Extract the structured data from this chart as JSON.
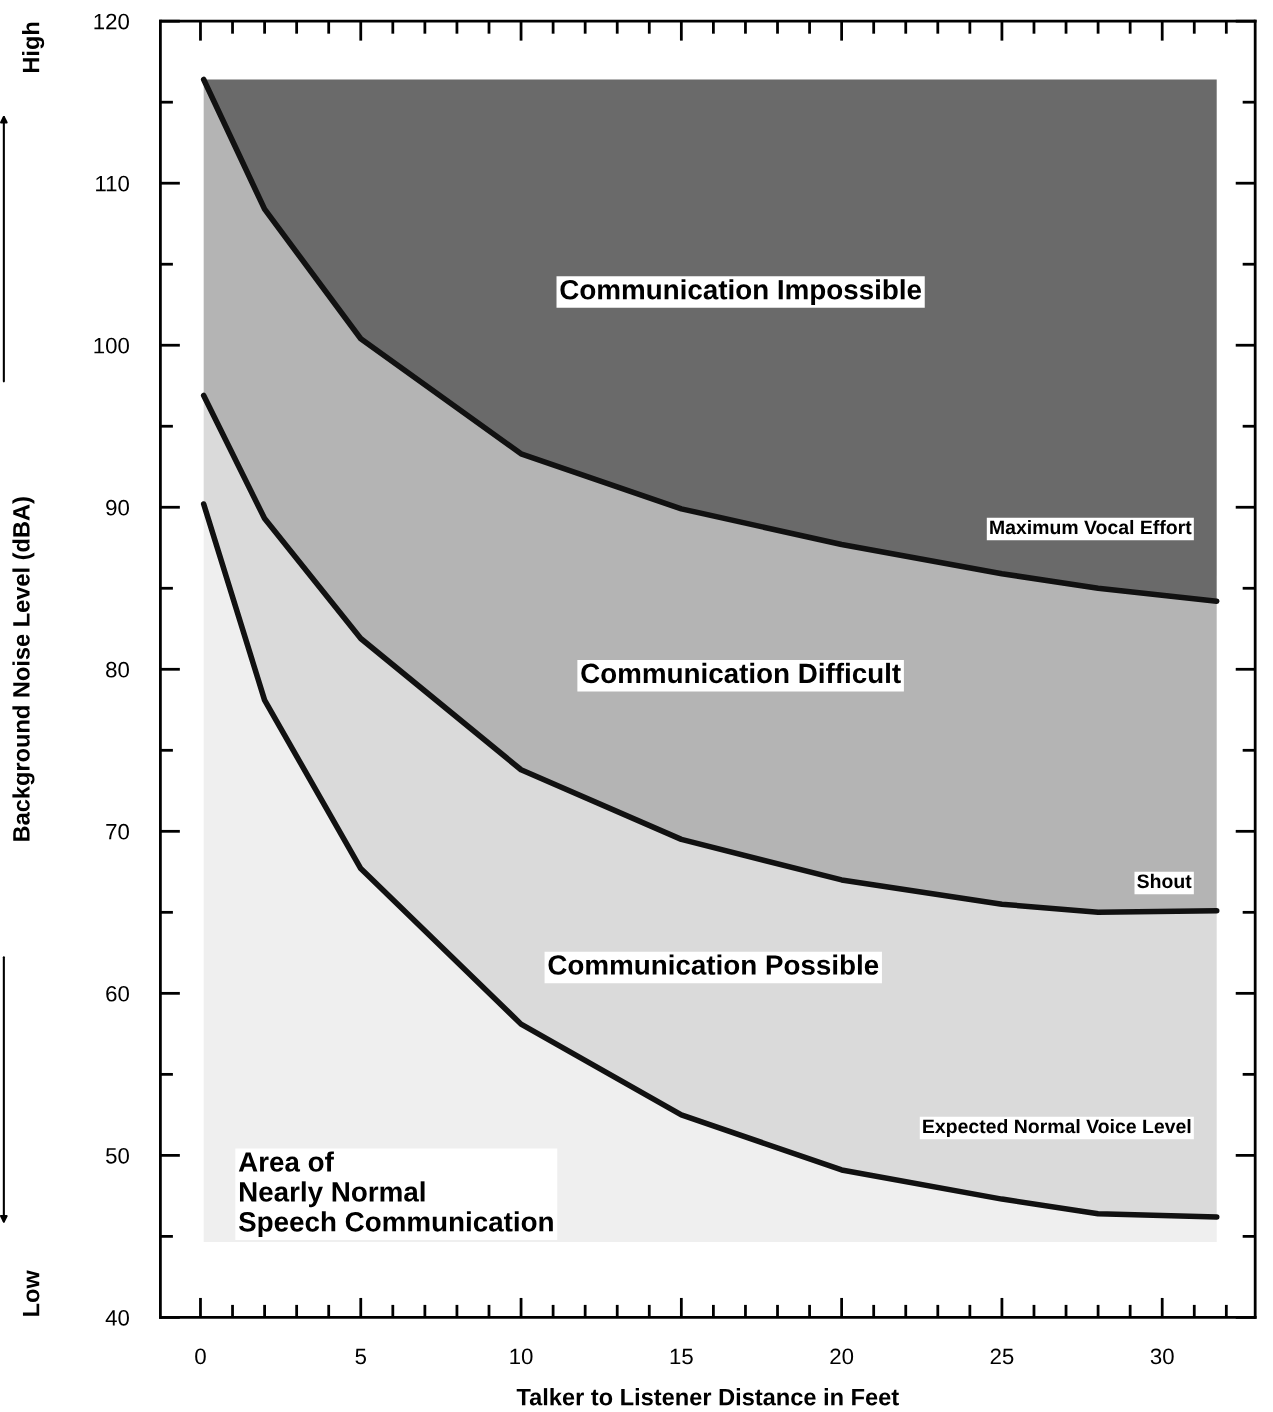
{
  "chart_data": {
    "type": "line",
    "xlabel": "Talker to Listener Distance in Feet",
    "ylabel": "Background Noise Level (dBA)",
    "x": [
      0.1,
      2,
      5,
      10,
      15,
      20,
      25,
      28,
      31.7
    ],
    "series": [
      {
        "name": "Maximum Vocal Effort",
        "color": "#111111",
        "values": [
          116.4,
          108.4,
          100.4,
          93.3,
          89.9,
          87.7,
          85.9,
          85.0,
          84.2
        ]
      },
      {
        "name": "Shout",
        "color": "#111111",
        "values": [
          96.9,
          89.3,
          81.9,
          73.8,
          69.5,
          67.0,
          65.5,
          65.0,
          65.1
        ]
      },
      {
        "name": "Expected Normal Voice Level",
        "color": "#111111",
        "values": [
          90.2,
          78.1,
          67.7,
          58.1,
          52.5,
          49.1,
          47.3,
          46.4,
          46.2
        ]
      }
    ],
    "annotations": [
      "Communication Impossible",
      "Communication Difficult",
      "Communication Possible",
      "Area of\nNearly Normal\nSpeech Communication",
      "Low",
      "High"
    ],
    "xlim": [
      -1.25,
      32.9
    ],
    "ylim": [
      40,
      120
    ],
    "xticks": [
      0,
      {
        "value": 1,
        "label": null
      },
      {
        "value": 2,
        "label": null
      },
      {
        "value": 3,
        "label": null
      },
      {
        "value": 4,
        "label": null
      },
      5,
      {
        "value": 6,
        "label": null
      },
      {
        "value": 7,
        "label": null
      },
      {
        "value": 8,
        "label": null
      },
      {
        "value": 9,
        "label": null
      },
      10,
      {
        "value": 11,
        "label": null
      },
      {
        "value": 12,
        "label": null
      },
      {
        "value": 13,
        "label": null
      },
      {
        "value": 14,
        "label": null
      },
      15,
      {
        "value": 16,
        "label": null
      },
      {
        "value": 17,
        "label": null
      },
      {
        "value": 18,
        "label": null
      },
      {
        "value": 19,
        "label": null
      },
      20,
      {
        "value": 21,
        "label": null
      },
      {
        "value": 22,
        "label": null
      },
      {
        "value": 23,
        "label": null
      },
      {
        "value": 24,
        "label": null
      },
      25,
      {
        "value": 26,
        "label": null
      },
      {
        "value": 27,
        "label": null
      },
      {
        "value": 28,
        "label": null
      },
      {
        "value": 29,
        "label": null
      },
      30,
      {
        "value": 31,
        "label": null
      },
      {
        "value": 32,
        "label": null
      }
    ],
    "yticks": [
      40,
      {
        "value": 45,
        "label": null
      },
      50,
      {
        "value": 55,
        "label": null
      },
      60,
      {
        "value": 65,
        "label": null
      },
      70,
      {
        "value": 75,
        "label": null
      },
      80,
      {
        "value": 85,
        "label": null
      },
      90,
      {
        "value": 95,
        "label": null
      },
      100,
      {
        "value": 105,
        "label": null
      },
      110,
      {
        "value": 115,
        "label": null
      },
      120
    ],
    "grid": false,
    "legend": false,
    "marker": "none",
    "line_style": "solid"
  }
}
